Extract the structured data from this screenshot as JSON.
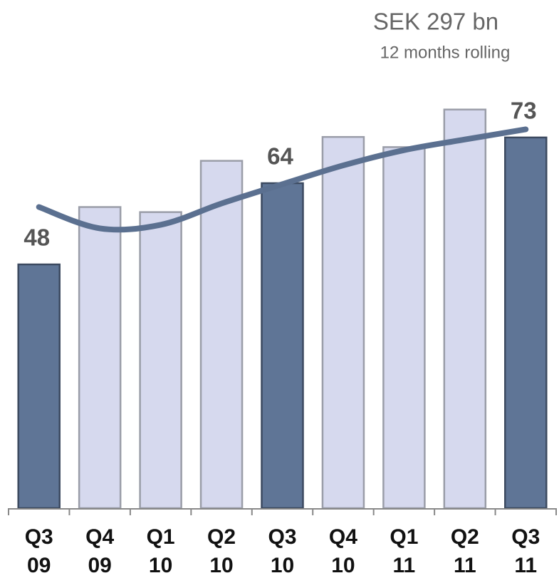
{
  "chart_data": {
    "type": "bar",
    "title": "SEK 297 bn",
    "subtitle": "12 months rolling",
    "categories": [
      [
        "Q3",
        "09"
      ],
      [
        "Q4",
        "09"
      ],
      [
        "Q1",
        "10"
      ],
      [
        "Q2",
        "10"
      ],
      [
        "Q3",
        "10"
      ],
      [
        "Q4",
        "10"
      ],
      [
        "Q1",
        "11"
      ],
      [
        "Q2",
        "11"
      ],
      [
        "Q3",
        "11"
      ]
    ],
    "series": [
      {
        "type": "bar",
        "values": [
          48,
          59.3,
          58.3,
          68.4,
          64,
          73.1,
          71.1,
          78.5,
          73
        ],
        "colors": [
          "#5f7596",
          "#d6d9ee",
          "#d6d9ee",
          "#d6d9ee",
          "#5f7596",
          "#d6d9ee",
          "#d6d9ee",
          "#d6d9ee",
          "#5f7596"
        ],
        "value_labels": [
          "48",
          null,
          null,
          null,
          "64",
          null,
          null,
          null,
          "73"
        ]
      },
      {
        "type": "line",
        "color": "#5b7090",
        "values": [
          59.3,
          55.1,
          55.8,
          60.0,
          63.8,
          67.5,
          70.5,
          72.6,
          74.6
        ]
      }
    ],
    "ylim": [
      0,
      80
    ]
  }
}
